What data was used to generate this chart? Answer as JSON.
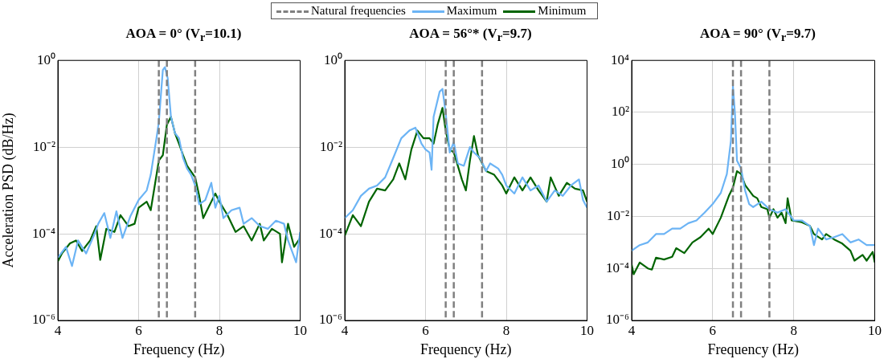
{
  "chart_data": [
    {
      "type": "line",
      "title": "AOA = 0° (V$_{r}$=10.1)",
      "xlabel": "Frequency (Hz)",
      "ylabel": "Acceleration PSD (dB/Hz)",
      "legend": "top",
      "grid": true,
      "log": "y",
      "line_style": "solid",
      "marker": "none",
      "xlim": [
        4,
        10
      ],
      "xticks": [
        4,
        6,
        8,
        10
      ],
      "ylim": [
        1e-06,
        1
      ],
      "yticks": [
        {
          "value": 1e-06,
          "label": "10⁻⁶"
        },
        {
          "value": 0.0001,
          "label": "10⁻⁴"
        },
        {
          "value": 0.01,
          "label": "10⁻²"
        },
        {
          "value": 1,
          "label": "10⁰"
        }
      ],
      "ref_lines": [
        {
          "axis": "x",
          "value": 6.5,
          "label": "Natural frequencies",
          "color": "#808080",
          "line_style": "dashed"
        },
        {
          "axis": "x",
          "value": 6.7,
          "color": "#808080",
          "line_style": "dashed"
        },
        {
          "axis": "x",
          "value": 7.4,
          "color": "#808080",
          "line_style": "dashed"
        }
      ],
      "series": [
        {
          "name": "Maximum",
          "color": "#6cb4f5",
          "x": [
            4.0,
            4.2,
            4.35,
            4.5,
            4.7,
            4.9,
            5.0,
            5.15,
            5.3,
            5.45,
            5.6,
            5.8,
            6.0,
            6.2,
            6.3,
            6.45,
            6.5,
            6.6,
            6.65,
            6.72,
            6.8,
            6.9,
            7.0,
            7.1,
            7.2,
            7.3,
            7.4,
            7.5,
            7.65,
            7.8,
            7.9,
            8.0,
            8.1,
            8.3,
            8.5,
            8.6,
            8.8,
            9.0,
            9.2,
            9.4,
            9.6,
            9.7,
            9.9,
            10.0
          ],
          "values": [
            2.8e-05,
            5e-05,
            1.8e-05,
            7e-05,
            3.5e-05,
            9.5e-05,
            0.00017,
            0.0003,
            8e-05,
            0.00033,
            8e-05,
            0.00026,
            0.0006,
            0.001,
            0.0023,
            0.018,
            0.038,
            0.6,
            0.7,
            0.39,
            0.05,
            0.021,
            0.016,
            0.0056,
            0.0032,
            0.0023,
            0.0013,
            0.00048,
            0.0006,
            0.0015,
            0.0004,
            0.00075,
            0.00023,
            0.00035,
            0.0004,
            0.00017,
            0.00023,
            0.00015,
            0.00013,
            0.0002,
            0.00017,
            7e-05,
            2.2e-05,
            0.00011
          ]
        },
        {
          "name": "Minimum",
          "color": "#006400",
          "x": [
            4.0,
            4.1,
            4.3,
            4.45,
            4.6,
            4.8,
            4.95,
            5.05,
            5.2,
            5.4,
            5.55,
            5.75,
            5.9,
            6.0,
            6.2,
            6.3,
            6.4,
            6.5,
            6.6,
            6.7,
            6.8,
            6.9,
            7.0,
            7.1,
            7.2,
            7.4,
            7.5,
            7.6,
            7.8,
            7.9,
            8.0,
            8.2,
            8.4,
            8.6,
            8.8,
            9.0,
            9.1,
            9.3,
            9.5,
            9.55,
            9.7,
            9.85,
            10.0
          ],
          "values": [
            2.3e-05,
            3.5e-05,
            6e-05,
            7e-05,
            4e-05,
            7e-05,
            0.00015,
            2.5e-05,
            0.00013,
            0.00011,
            0.00027,
            0.00015,
            0.00017,
            0.0004,
            0.00055,
            0.00035,
            0.0013,
            0.0049,
            0.0065,
            0.033,
            0.05,
            0.021,
            0.012,
            0.0065,
            0.0037,
            0.002,
            0.00075,
            0.00023,
            0.00055,
            0.00085,
            0.00055,
            0.00027,
            0.00011,
            0.00015,
            7e-05,
            0.00017,
            7e-05,
            0.00013,
            0.0001,
            2.2e-05,
            0.00017,
            5e-05,
            8e-05
          ]
        }
      ]
    },
    {
      "type": "line",
      "title": "AOA = 56°* (V$_{r}$=9.7)",
      "xlabel": "Frequency (Hz)",
      "grid": true,
      "log": "y",
      "line_style": "solid",
      "marker": "none",
      "xlim": [
        4,
        10
      ],
      "xticks": [
        4,
        6,
        8,
        10
      ],
      "ylim": [
        1e-06,
        1
      ],
      "yticks": [
        {
          "value": 1e-06,
          "label": "10⁻⁶"
        },
        {
          "value": 0.0001,
          "label": "10⁻⁴"
        },
        {
          "value": 0.01,
          "label": "10⁻²"
        },
        {
          "value": 1,
          "label": "10⁰"
        }
      ],
      "ref_lines": [
        {
          "axis": "x",
          "value": 6.5,
          "color": "#808080",
          "line_style": "dashed"
        },
        {
          "axis": "x",
          "value": 6.7,
          "color": "#808080",
          "line_style": "dashed"
        },
        {
          "axis": "x",
          "value": 7.4,
          "color": "#808080",
          "line_style": "dashed"
        }
      ],
      "series": [
        {
          "color": "#6cb4f5",
          "x": [
            4.0,
            4.2,
            4.4,
            4.6,
            4.8,
            5.0,
            5.2,
            5.4,
            5.6,
            5.75,
            5.9,
            6.0,
            6.1,
            6.15,
            6.2,
            6.35,
            6.42,
            6.5,
            6.6,
            6.7,
            6.8,
            6.95,
            7.1,
            7.2,
            7.35,
            7.5,
            7.6,
            7.8,
            7.9,
            8.0,
            8.2,
            8.4,
            8.6,
            8.8,
            9.0,
            9.2,
            9.4,
            9.6,
            9.8,
            9.9,
            10.0
          ],
          "values": [
            0.00023,
            0.00035,
            0.00075,
            0.0011,
            0.0013,
            0.002,
            0.0056,
            0.016,
            0.024,
            0.028,
            0.012,
            0.0088,
            0.0075,
            0.003,
            0.05,
            0.19,
            0.22,
            0.06,
            0.0075,
            0.013,
            0.0042,
            0.0037,
            0.01,
            0.0075,
            0.0056,
            0.0028,
            0.0042,
            0.0032,
            0.0023,
            0.0013,
            0.00085,
            0.002,
            0.001,
            0.0013,
            0.00055,
            0.001,
            0.00075,
            0.0013,
            0.0018,
            0.0006,
            0.0004
          ]
        },
        {
          "color": "#006400",
          "x": [
            4.0,
            4.2,
            4.4,
            4.6,
            4.8,
            5.0,
            5.2,
            5.35,
            5.5,
            5.65,
            5.8,
            5.95,
            6.1,
            6.2,
            6.3,
            6.42,
            6.5,
            6.6,
            6.7,
            6.8,
            6.9,
            7.0,
            7.1,
            7.2,
            7.3,
            7.5,
            7.7,
            7.9,
            8.0,
            8.2,
            8.4,
            8.6,
            8.8,
            9.0,
            9.1,
            9.3,
            9.5,
            9.7,
            9.9,
            10.0
          ],
          "values": [
            9e-05,
            0.00027,
            0.00015,
            0.00055,
            0.0011,
            0.001,
            0.0018,
            0.0042,
            0.0018,
            0.0088,
            0.024,
            0.016,
            0.016,
            0.012,
            0.033,
            0.08,
            0.024,
            0.0088,
            0.0075,
            0.0037,
            0.0018,
            0.001,
            0.0049,
            0.018,
            0.0065,
            0.0028,
            0.0023,
            0.0013,
            0.00085,
            0.002,
            0.001,
            0.002,
            0.001,
            0.00055,
            0.002,
            0.00075,
            0.0015,
            0.0011,
            0.001,
            0.00055
          ]
        }
      ]
    },
    {
      "type": "line",
      "title": "AOA = 90° (V$_{r}$=9.7)",
      "xlabel": "Frequency (Hz)",
      "grid": true,
      "log": "y",
      "line_style": "solid",
      "marker": "none",
      "xlim": [
        4,
        10
      ],
      "xticks": [
        4,
        6,
        8,
        10
      ],
      "ylim": [
        1e-06,
        10000.0
      ],
      "yticks": [
        {
          "value": 1e-06,
          "label": "10⁻⁶"
        },
        {
          "value": 0.0001,
          "label": "10⁻⁴"
        },
        {
          "value": 0.01,
          "label": "10⁻²"
        },
        {
          "value": 1,
          "label": "10⁰"
        },
        {
          "value": 100,
          "label": "10²"
        },
        {
          "value": 10000,
          "label": "10⁴"
        }
      ],
      "ref_lines": [
        {
          "axis": "x",
          "value": 6.5,
          "color": "#808080",
          "line_style": "dashed"
        },
        {
          "axis": "x",
          "value": 6.7,
          "color": "#808080",
          "line_style": "dashed"
        },
        {
          "axis": "x",
          "value": 7.4,
          "color": "#808080",
          "line_style": "dashed"
        }
      ],
      "series": [
        {
          "color": "#6cb4f5",
          "x": [
            4.0,
            4.2,
            4.4,
            4.6,
            4.8,
            5.0,
            5.2,
            5.4,
            5.6,
            5.8,
            6.0,
            6.2,
            6.35,
            6.45,
            6.5,
            6.55,
            6.6,
            6.7,
            6.8,
            6.9,
            7.0,
            7.2,
            7.4,
            7.6,
            7.8,
            8.0,
            8.2,
            8.4,
            8.5,
            8.6,
            8.8,
            9.0,
            9.2,
            9.4,
            9.6,
            9.8,
            10.0
          ],
          "values": [
            0.00048,
            0.00079,
            0.001,
            0.0021,
            0.0021,
            0.0034,
            0.0034,
            0.0055,
            0.007,
            0.014,
            0.03,
            0.08,
            0.43,
            8,
            1000,
            90,
            1.4,
            0.7,
            0.1,
            0.03,
            0.023,
            0.037,
            0.019,
            0.014,
            0.019,
            0.007,
            0.007,
            0.0043,
            0.00079,
            0.0034,
            0.0013,
            0.0016,
            0.0021,
            0.001,
            0.0013,
            0.00079,
            0.00079
          ]
        },
        {
          "color": "#006400",
          "x": [
            4.0,
            4.05,
            4.2,
            4.4,
            4.5,
            4.6,
            4.8,
            5.0,
            5.1,
            5.3,
            5.5,
            5.7,
            5.9,
            6.0,
            6.2,
            6.4,
            6.5,
            6.6,
            6.7,
            6.8,
            6.9,
            7.0,
            7.1,
            7.2,
            7.35,
            7.4,
            7.5,
            7.6,
            7.7,
            7.8,
            7.85,
            7.95,
            8.2,
            8.4,
            8.5,
            8.7,
            8.8,
            9.0,
            9.2,
            9.4,
            9.5,
            9.7,
            9.8,
            9.95,
            10.0
          ],
          "values": [
            0.00014,
            6e-05,
            0.00017,
            0.0001,
            9e-05,
            0.00026,
            0.00022,
            0.00028,
            0.0006,
            0.00039,
            0.001,
            0.0016,
            0.0034,
            0.0021,
            0.0089,
            0.062,
            0.13,
            0.55,
            0.43,
            0.16,
            0.1,
            0.062,
            0.05,
            0.023,
            0.019,
            0.0089,
            0.019,
            0.0089,
            0.014,
            0.0055,
            0.05,
            0.007,
            0.006,
            0.0043,
            0.0021,
            0.0013,
            0.0021,
            0.0013,
            0.0009,
            0.00048,
            0.0002,
            0.00033,
            0.0002,
            0.00043,
            0.00017
          ]
        }
      ]
    }
  ]
}
